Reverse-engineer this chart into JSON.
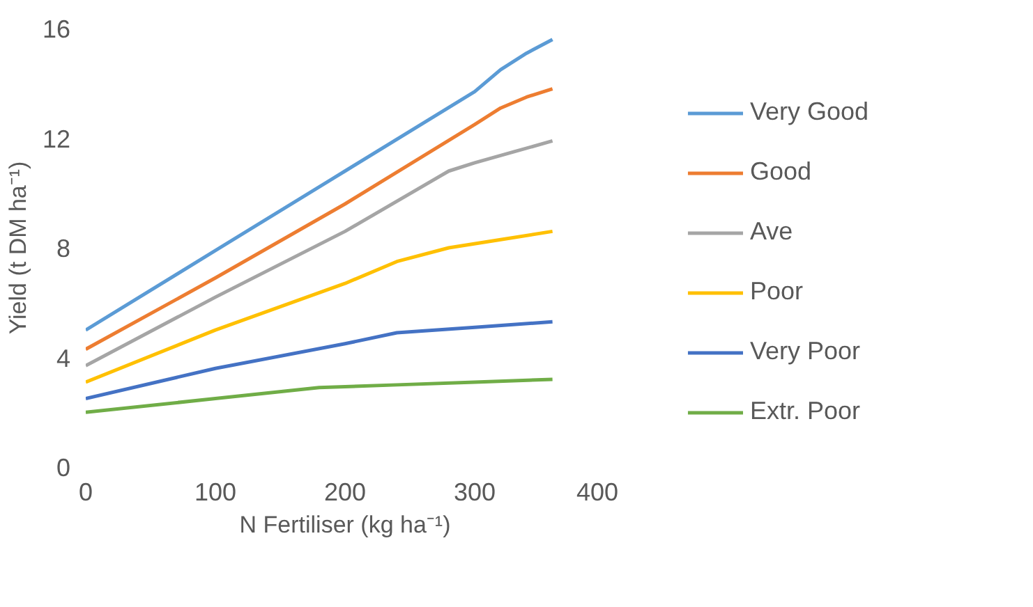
{
  "chart_data": {
    "type": "line",
    "xlabel": "N Fertiliser (kg ha⁻¹)",
    "ylabel": "Yield (t DM ha⁻¹)",
    "xlim": [
      0,
      400
    ],
    "xticks": [
      0,
      100,
      200,
      300,
      400
    ],
    "ylim": [
      0,
      16
    ],
    "yticks": [
      0,
      4,
      8,
      12,
      16
    ],
    "grid": false,
    "legend": "right",
    "marker": "none",
    "line_style": "solid",
    "series": [
      {
        "name": "Very Good",
        "color": "#5b9bd5",
        "x": [
          0,
          100,
          200,
          300,
          320,
          340,
          360
        ],
        "values": [
          5.0,
          7.9,
          10.8,
          13.7,
          14.5,
          15.1,
          15.6
        ]
      },
      {
        "name": "Good",
        "color": "#ed7d31",
        "x": [
          0,
          100,
          200,
          300,
          320,
          340,
          360
        ],
        "values": [
          4.3,
          6.9,
          9.6,
          12.5,
          13.1,
          13.5,
          13.8
        ]
      },
      {
        "name": "Ave",
        "color": "#a5a5a5",
        "x": [
          0,
          100,
          200,
          280,
          300,
          330,
          360
        ],
        "values": [
          3.7,
          6.2,
          8.6,
          10.8,
          11.1,
          11.5,
          11.9
        ]
      },
      {
        "name": "Poor",
        "color": "#ffc000",
        "x": [
          0,
          100,
          200,
          240,
          280,
          320,
          360
        ],
        "values": [
          3.1,
          5.0,
          6.7,
          7.5,
          8.0,
          8.3,
          8.6
        ]
      },
      {
        "name": "Very Poor",
        "color": "#4472c4",
        "x": [
          0,
          100,
          200,
          240,
          300,
          360
        ],
        "values": [
          2.5,
          3.6,
          4.5,
          4.9,
          5.1,
          5.3
        ]
      },
      {
        "name": "Extr. Poor",
        "color": "#70ad47",
        "x": [
          0,
          100,
          180,
          240,
          300,
          360
        ],
        "values": [
          2.0,
          2.5,
          2.9,
          3.0,
          3.1,
          3.2
        ]
      }
    ]
  }
}
